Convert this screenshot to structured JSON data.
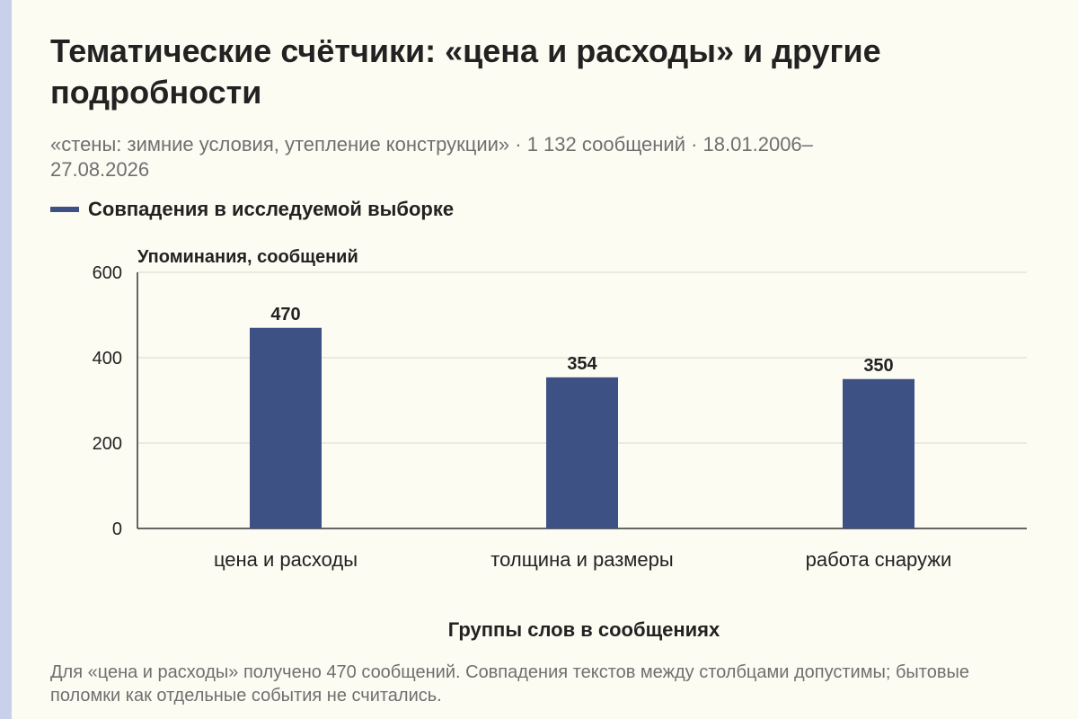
{
  "title": "Тематические счётчики: «цена и расходы» и другие подробности",
  "subtitle": "«стены: зимние условия, утепление конструкции» · 1 132 сообщений · 18.01.2006–27.08.2026",
  "note": "Для «цена и расходы» получено 470 сообщений. Совпадения текстов между столбцами допустимы; бытовые поломки как отдельные события не считались.",
  "colors": {
    "bar": "#3d5185",
    "grid": "#d9d9d2",
    "axis": "#333333",
    "text": "#222222",
    "muted": "#6f6f6f",
    "accent_strip": "#c9d1ea"
  },
  "chart_data": {
    "type": "bar",
    "categories": [
      "цена и расходы",
      "толщина и размеры",
      "работа снаружи"
    ],
    "series": [
      {
        "name": "Совпадения в исследуемой выборке",
        "values": [
          470,
          354,
          350
        ]
      }
    ],
    "data_labels": [
      "470",
      "354",
      "350"
    ],
    "ylabel": "Упоминания, сообщений",
    "xlabel": "Группы слов в сообщениях",
    "ylim": [
      0,
      600
    ],
    "yticks": [
      0,
      200,
      400,
      600
    ],
    "grid": true,
    "legend_position": "top-left"
  }
}
